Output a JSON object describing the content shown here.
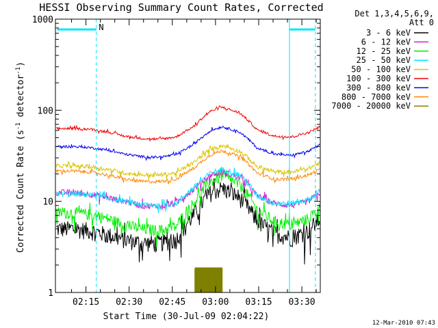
{
  "chart_data": {
    "type": "line",
    "title": "HESSI Observing Summary Count Rates, Corrected",
    "xlabel": "Start Time (30-Jul-09 02:04:22)",
    "ylabel_parts": [
      "Corrected Count Rate (s",
      "-1",
      " detector",
      "-1",
      ")"
    ],
    "y_scale": "log",
    "ylim": [
      1,
      1000
    ],
    "y_ticks": [
      {
        "value": 1,
        "label": "1"
      },
      {
        "value": 10,
        "label": "10"
      },
      {
        "value": 100,
        "label": "100"
      },
      {
        "value": 1000,
        "label": "1000"
      }
    ],
    "xlim_min": [
      0,
      92
    ],
    "x_ticks": [
      {
        "value": 10.6,
        "label": "02:15"
      },
      {
        "value": 25.6,
        "label": "02:30"
      },
      {
        "value": 40.6,
        "label": "02:45"
      },
      {
        "value": 55.6,
        "label": "03:00"
      },
      {
        "value": 70.6,
        "label": "03:15"
      },
      {
        "value": 85.6,
        "label": "03:30"
      }
    ],
    "legend_header": [
      "Det 1,3,4,5,6,9,",
      "Att 0"
    ],
    "legend_placement": "right",
    "annotation_N": "N",
    "footer": "12-Mar-2010 07:43",
    "x_knots": [
      0,
      6,
      12,
      18,
      24,
      30,
      36,
      42,
      48,
      54,
      58,
      64,
      70,
      76,
      82,
      88,
      92
    ],
    "series": [
      {
        "name": "3 - 6 keV",
        "color": "#000000",
        "noise": 0.22,
        "y": [
          5.0,
          5.0,
          4.8,
          4.3,
          3.8,
          3.5,
          3.5,
          3.8,
          7.0,
          12.5,
          14.0,
          11.0,
          6.0,
          4.5,
          4.0,
          4.8,
          6.5
        ]
      },
      {
        "name": "6 - 12 keV",
        "color": "#cc22cc",
        "noise": 0.08,
        "y": [
          12.5,
          12.5,
          12.0,
          11.0,
          10.0,
          9.0,
          8.8,
          9.5,
          13.5,
          19.5,
          21.0,
          18.5,
          11.5,
          9.5,
          9.0,
          10.0,
          12.5
        ]
      },
      {
        "name": "12 - 25 keV",
        "color": "#00ee00",
        "noise": 0.15,
        "y": [
          7.5,
          7.5,
          7.2,
          6.5,
          5.5,
          5.0,
          4.8,
          5.3,
          9.5,
          16.5,
          19.0,
          15.0,
          8.0,
          6.0,
          5.5,
          6.5,
          8.5
        ]
      },
      {
        "name": "25 - 50 keV",
        "color": "#00e5ff",
        "noise": 0.07,
        "y": [
          12.0,
          12.0,
          11.8,
          10.8,
          10.0,
          9.2,
          9.0,
          9.5,
          14.0,
          20.5,
          22.5,
          19.5,
          11.5,
          9.5,
          9.5,
          10.5,
          13.0
        ]
      },
      {
        "name": "50 - 100 keV",
        "color": "#d8c400",
        "noise": 0.05,
        "y": [
          24.5,
          24.5,
          24.0,
          22.5,
          20.5,
          19.5,
          19.5,
          20.5,
          26.5,
          37.5,
          41.0,
          35.5,
          24.0,
          21.0,
          21.0,
          23.0,
          26.5
        ]
      },
      {
        "name": "100 - 300 keV",
        "color": "#ee0000",
        "noise": 0.03,
        "y": [
          63.0,
          63.0,
          62.0,
          58.0,
          52.0,
          49.0,
          48.0,
          51.0,
          66.0,
          98.0,
          108.0,
          93.0,
          61.0,
          52.0,
          51.0,
          57.0,
          66.0
        ]
      },
      {
        "name": "300 - 800 keV",
        "color": "#0000ee",
        "noise": 0.03,
        "y": [
          40.0,
          40.0,
          39.0,
          36.5,
          33.0,
          31.0,
          30.5,
          32.5,
          42.0,
          60.0,
          66.0,
          57.5,
          38.5,
          33.0,
          32.0,
          35.5,
          42.0
        ]
      },
      {
        "name": "800 - 7000 keV",
        "color": "#ff8800",
        "noise": 0.04,
        "y": [
          21.5,
          21.5,
          21.0,
          19.5,
          17.5,
          16.5,
          16.5,
          17.5,
          23.0,
          32.5,
          36.0,
          31.0,
          20.5,
          17.5,
          17.5,
          19.5,
          22.5
        ]
      },
      {
        "name": "7000 - 20000 keV",
        "color": "#808000",
        "noise": 0.0,
        "y": [],
        "bursts": [
          {
            "x0": 48.5,
            "x1": 58.0,
            "y": 1.85
          }
        ]
      }
    ],
    "vertical_lines": [
      {
        "x": 14.2,
        "style": "dashed",
        "color": "#00e5ff"
      },
      {
        "x": 81.3,
        "style": "solid",
        "color": "#00e5ff"
      },
      {
        "x": 90.3,
        "style": "dashed",
        "color": "#00e5ff"
      }
    ],
    "horizontal_bars": [
      {
        "x0": 0.6,
        "x1": 14.2,
        "y": 770,
        "color": "#00e5ff"
      },
      {
        "x0": 81.3,
        "x1": 90.3,
        "y": 770,
        "color": "#00e5ff"
      }
    ]
  }
}
